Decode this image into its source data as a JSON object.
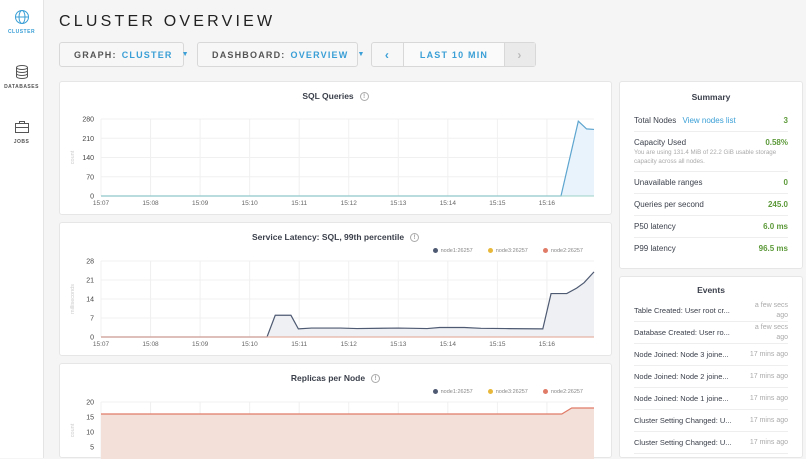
{
  "sidebar": {
    "items": [
      {
        "label": "CLUSTER",
        "icon": "globe-icon",
        "active": true
      },
      {
        "label": "DATABASES",
        "icon": "database-icon"
      },
      {
        "label": "JOBS",
        "icon": "briefcase-icon"
      }
    ]
  },
  "header": {
    "title": "CLUSTER OVERVIEW"
  },
  "controls": {
    "graph_label": "GRAPH:",
    "graph_value": "CLUSTER",
    "dashboard_label": "DASHBOARD:",
    "dashboard_value": "OVERVIEW",
    "time_range": "LAST 10 MIN",
    "prev": "‹",
    "next": "›"
  },
  "colors": {
    "accent": "#3a9fd6",
    "good": "#5d9a3a",
    "node1": "#4e5a72",
    "node3": "#e8b83a",
    "node2": "#e07b67"
  },
  "chart_data": [
    {
      "type": "area",
      "title": "SQL Queries",
      "ylabel": "count",
      "ylim": [
        0,
        280
      ],
      "yticks": [
        0,
        70,
        140,
        210,
        280
      ],
      "xticks": [
        "15:07",
        "15:08",
        "15:09",
        "15:10",
        "15:11",
        "15:12",
        "15:13",
        "15:14",
        "15:15",
        "15:16"
      ],
      "xrange": [
        "15:07:00",
        "15:16:57"
      ],
      "series": [
        {
          "color": "#5da5cf",
          "fill": "#e8f3fb",
          "points": [
            [
              "15:07:00",
              0
            ],
            [
              "15:16:17",
              0
            ],
            [
              "15:16:38",
              272
            ],
            [
              "15:16:48",
              244
            ],
            [
              "15:16:57",
              242
            ]
          ]
        }
      ]
    },
    {
      "type": "area",
      "title": "Service Latency: SQL, 99th percentile",
      "ylabel": "milliseconds",
      "ylim": [
        0,
        28
      ],
      "yticks": [
        0,
        7,
        14,
        21,
        28
      ],
      "xticks": [
        "15:07",
        "15:08",
        "15:09",
        "15:10",
        "15:11",
        "15:12",
        "15:13",
        "15:14",
        "15:15",
        "15:16"
      ],
      "xrange": [
        "15:07:00",
        "15:16:57"
      ],
      "legend": [
        "node1:26257",
        "node3:26257",
        "node2:26257"
      ],
      "series": [
        {
          "name": "node1:26257",
          "color": "#4e5a72",
          "fill": "#eef0f3",
          "points": [
            [
              "15:07:00",
              0
            ],
            [
              "15:10:21",
              0
            ],
            [
              "15:10:31",
              8
            ],
            [
              "15:10:50",
              8
            ],
            [
              "15:10:59",
              3
            ],
            [
              "15:11:15",
              3.3
            ],
            [
              "15:11:50",
              3.3
            ],
            [
              "15:12:10",
              3.1
            ],
            [
              "15:13:00",
              3.3
            ],
            [
              "15:13:35",
              3.1
            ],
            [
              "15:13:50",
              3.5
            ],
            [
              "15:14:20",
              3.5
            ],
            [
              "15:14:40",
              3.2
            ],
            [
              "15:15:10",
              3.1
            ],
            [
              "15:15:55",
              3
            ],
            [
              "15:16:05",
              16
            ],
            [
              "15:16:24",
              16
            ],
            [
              "15:16:36",
              18
            ],
            [
              "15:16:45",
              20
            ],
            [
              "15:16:57",
              24
            ]
          ]
        },
        {
          "name": "node2:26257",
          "color": "#e07b67",
          "points": [
            [
              "15:07:00",
              0
            ],
            [
              "15:16:57",
              0
            ]
          ]
        }
      ]
    },
    {
      "type": "area",
      "title": "Replicas per Node",
      "ylabel": "count",
      "ylim": [
        0,
        20
      ],
      "yticks": [
        5,
        10,
        15,
        20
      ],
      "xrange": [
        "15:07:00",
        "15:16:57"
      ],
      "legend": [
        "node1:26257",
        "node3:26257",
        "node2:26257"
      ],
      "series": [
        {
          "name": "node2:26257",
          "color": "#e07b67",
          "fill": "#f3e0d8",
          "points": [
            [
              "15:07:00",
              16
            ],
            [
              "15:16:18",
              16
            ],
            [
              "15:16:30",
              18
            ],
            [
              "15:16:57",
              18
            ]
          ]
        }
      ]
    }
  ],
  "summary": {
    "title": "Summary",
    "total_nodes_label": "Total Nodes",
    "view_nodes": "View nodes list",
    "total_nodes": "3",
    "capacity_label": "Capacity Used",
    "capacity": "0.58%",
    "capacity_note": "You are using 131.4 MiB of 22.2 GiB usable storage capacity across all nodes.",
    "unavailable_label": "Unavailable ranges",
    "unavailable": "0",
    "qps_label": "Queries per second",
    "qps": "245.0",
    "p50_label": "P50 latency",
    "p50": "6.0 ms",
    "p99_label": "P99 latency",
    "p99": "96.5 ms"
  },
  "events": {
    "title": "Events",
    "items": [
      {
        "text": "Table Created: User root cr...",
        "time": "a few secs ago"
      },
      {
        "text": "Database Created: User ro...",
        "time": "a few secs ago"
      },
      {
        "text": "Node Joined: Node 3 joine...",
        "time": "17 mins ago"
      },
      {
        "text": "Node Joined: Node 2 joine...",
        "time": "17 mins ago"
      },
      {
        "text": "Node Joined: Node 1 joine...",
        "time": "17 mins ago"
      },
      {
        "text": "Cluster Setting Changed: U...",
        "time": "17 mins ago"
      },
      {
        "text": "Cluster Setting Changed: U...",
        "time": "17 mins ago"
      }
    ]
  }
}
